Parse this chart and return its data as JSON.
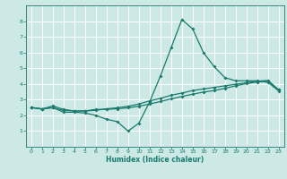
{
  "xlabel": "Humidex (Indice chaleur)",
  "background_color": "#cce9e5",
  "grid_color": "#ffffff",
  "line_color": "#1a7a6e",
  "xlim": [
    -0.5,
    23.5
  ],
  "ylim": [
    0,
    9
  ],
  "xticks": [
    0,
    1,
    2,
    3,
    4,
    5,
    6,
    7,
    8,
    9,
    10,
    11,
    12,
    13,
    14,
    15,
    16,
    17,
    18,
    19,
    20,
    21,
    22,
    23
  ],
  "yticks": [
    1,
    2,
    3,
    4,
    5,
    6,
    7,
    8
  ],
  "line1_x": [
    0,
    1,
    2,
    3,
    4,
    5,
    6,
    7,
    8,
    9,
    10,
    11,
    12,
    13,
    14,
    15,
    16,
    17,
    18,
    19,
    20,
    21,
    22,
    23
  ],
  "line1_y": [
    2.5,
    2.4,
    2.5,
    2.2,
    2.2,
    2.15,
    2.0,
    1.75,
    1.6,
    1.0,
    1.5,
    2.85,
    4.5,
    6.3,
    8.1,
    7.5,
    6.0,
    5.1,
    4.4,
    4.2,
    4.2,
    4.2,
    4.1,
    3.55
  ],
  "line2_x": [
    0,
    1,
    2,
    3,
    4,
    5,
    6,
    7,
    8,
    9,
    10,
    11,
    12,
    13,
    14,
    15,
    16,
    17,
    18,
    19,
    20,
    21,
    22,
    23
  ],
  "line2_y": [
    2.5,
    2.4,
    2.6,
    2.38,
    2.28,
    2.28,
    2.38,
    2.38,
    2.42,
    2.48,
    2.58,
    2.72,
    2.88,
    3.05,
    3.2,
    3.35,
    3.48,
    3.58,
    3.72,
    3.88,
    4.02,
    4.12,
    4.18,
    3.62
  ],
  "line3_x": [
    0,
    1,
    2,
    3,
    4,
    5,
    6,
    7,
    8,
    9,
    10,
    11,
    12,
    13,
    14,
    15,
    16,
    17,
    18,
    19,
    20,
    21,
    22,
    23
  ],
  "line3_y": [
    2.5,
    2.42,
    2.48,
    2.32,
    2.28,
    2.28,
    2.32,
    2.42,
    2.48,
    2.58,
    2.72,
    2.92,
    3.08,
    3.28,
    3.42,
    3.58,
    3.68,
    3.78,
    3.88,
    3.98,
    4.08,
    4.18,
    4.22,
    3.62
  ]
}
